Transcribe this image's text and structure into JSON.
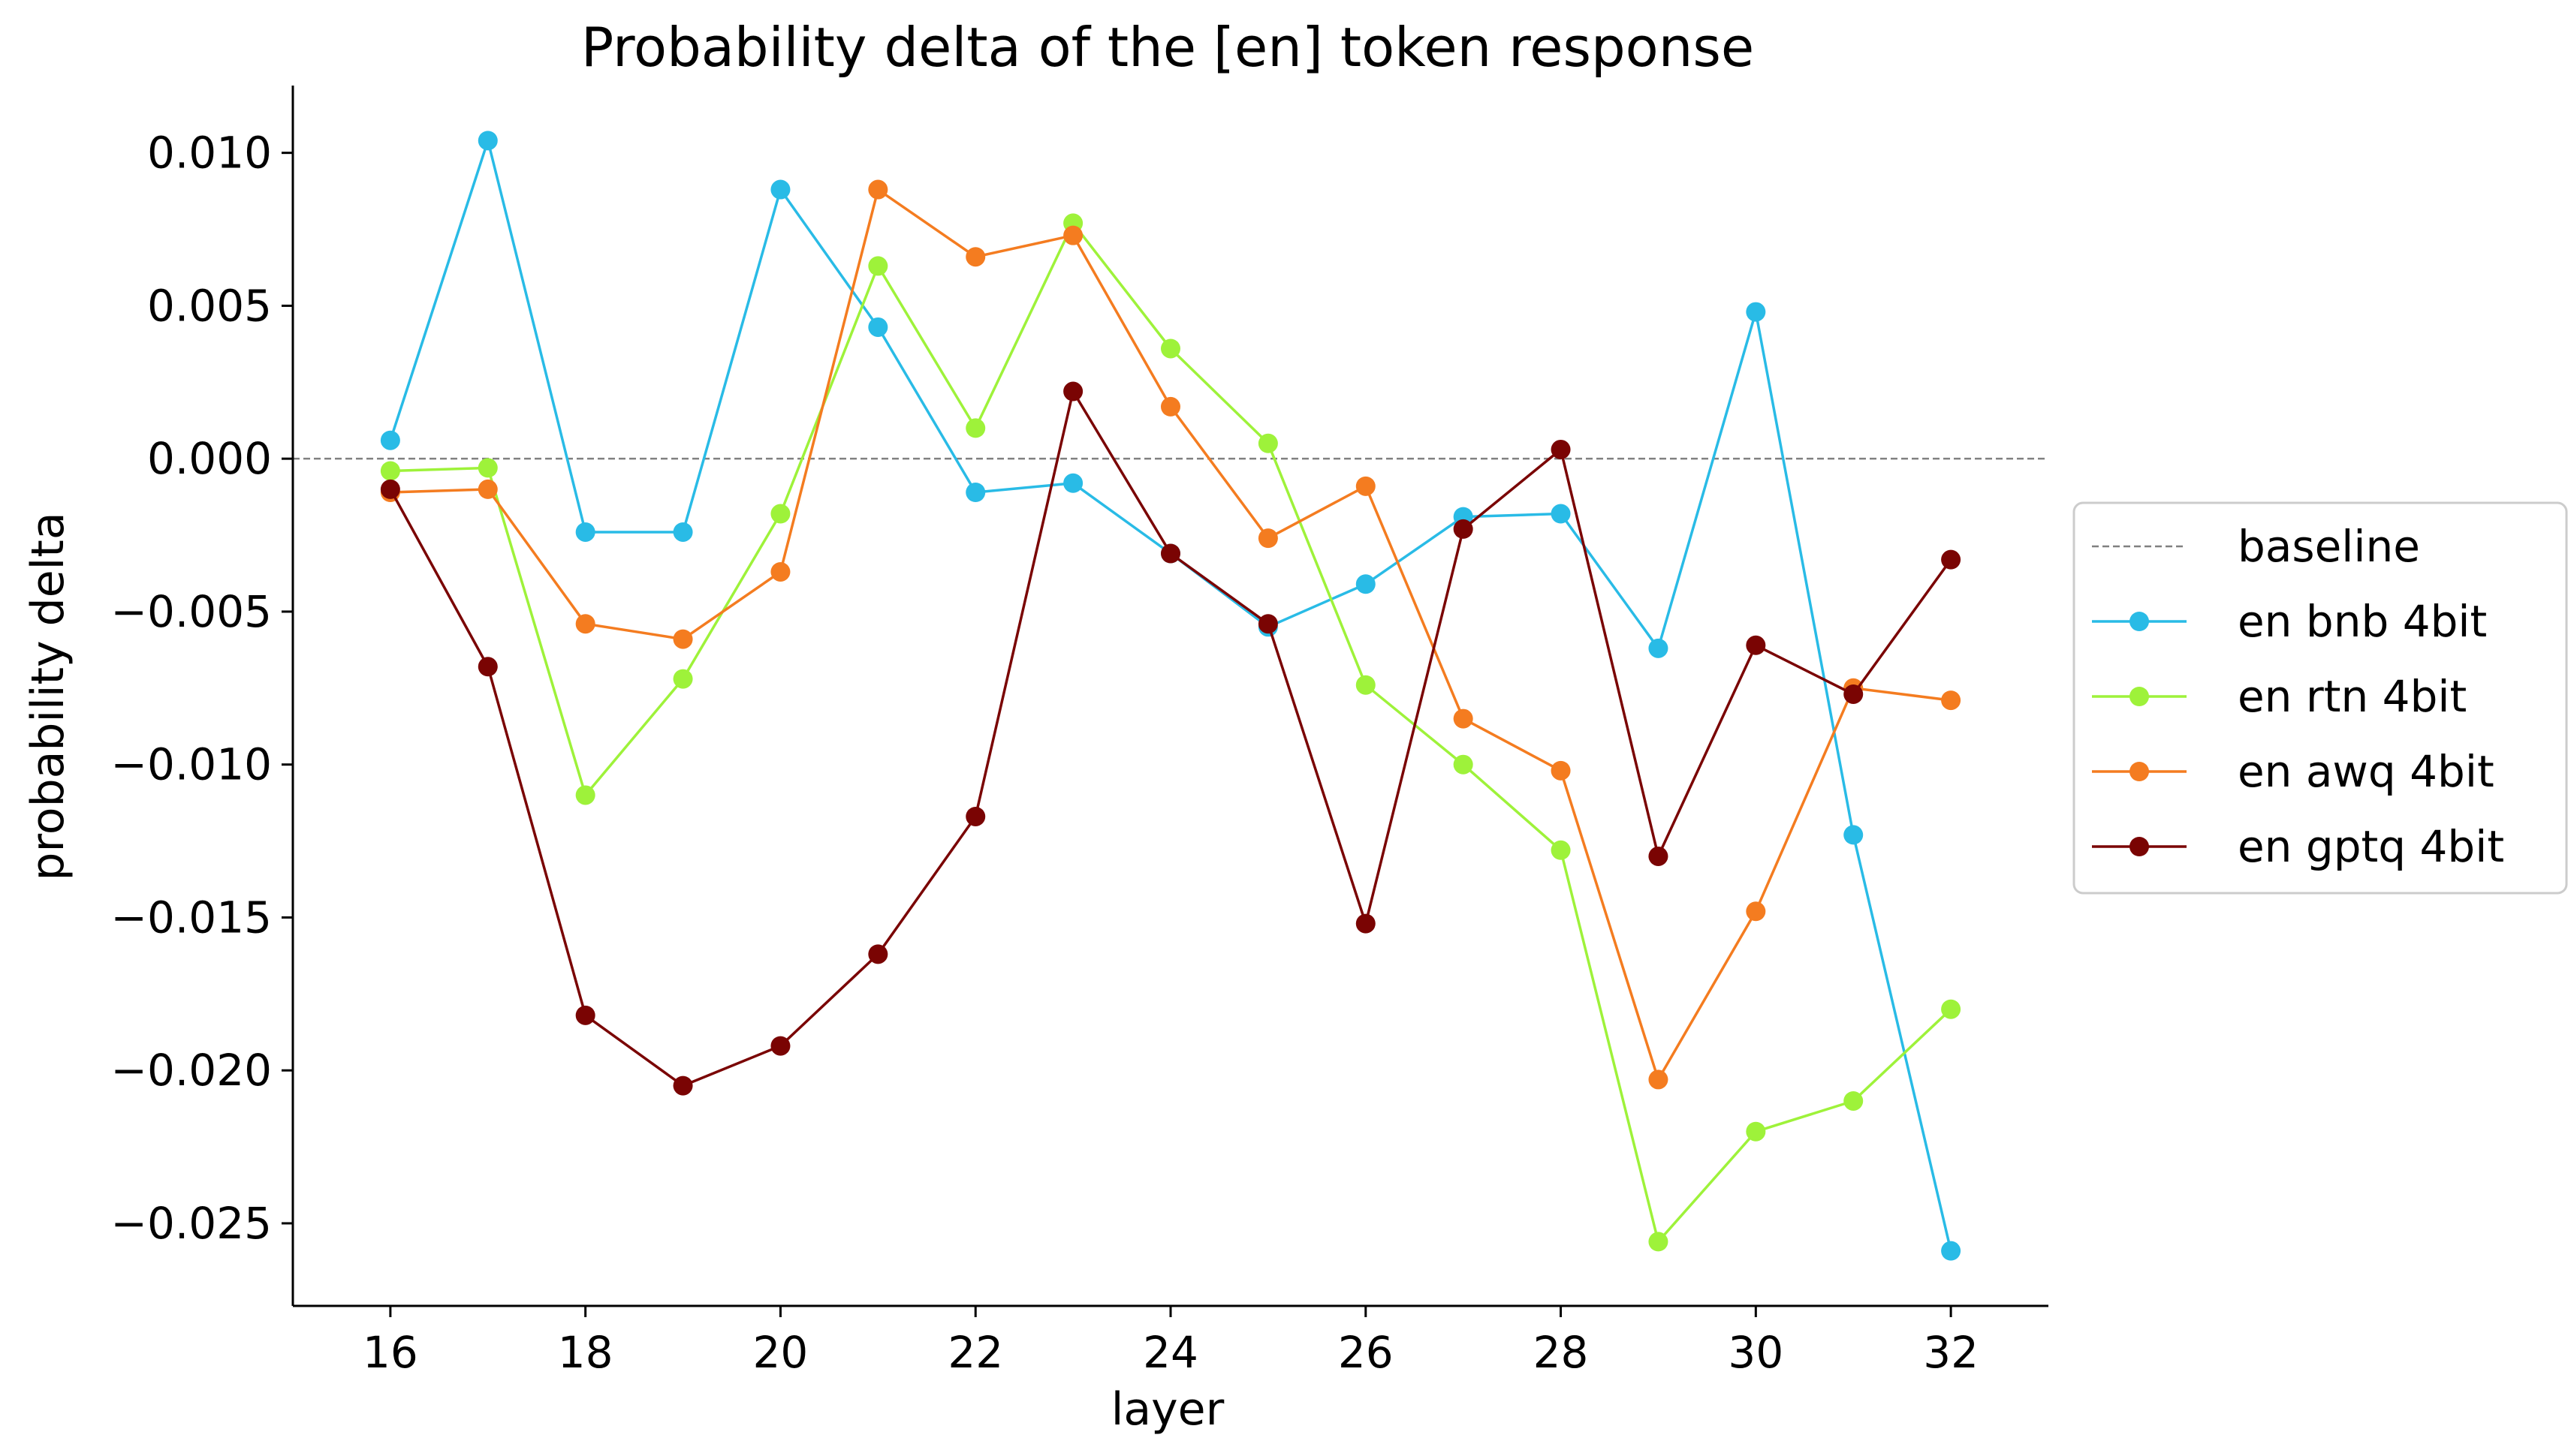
{
  "chart_data": {
    "type": "line",
    "title": "Probability delta of the [en] token response",
    "xlabel": "layer",
    "ylabel": "probability delta",
    "xlim": [
      15.0,
      33.0
    ],
    "ylim": [
      -0.0277,
      0.0122
    ],
    "xticks": [
      16,
      18,
      20,
      22,
      24,
      26,
      28,
      30,
      32
    ],
    "yticks": [
      0.01,
      0.005,
      0.0,
      -0.005,
      -0.01,
      -0.015,
      -0.02,
      -0.025
    ],
    "ytick_labels": [
      "0.010",
      "0.005",
      "0.000",
      "−0.005",
      "−0.010",
      "−0.015",
      "−0.020",
      "−0.025"
    ],
    "grid": false,
    "legend_position": "center-right outside",
    "baseline": {
      "name": "baseline",
      "y": 0.0,
      "color": "#808080",
      "style": "dashed"
    },
    "x": [
      16,
      17,
      18,
      19,
      20,
      21,
      22,
      23,
      24,
      25,
      26,
      27,
      28,
      29,
      30,
      31,
      32
    ],
    "series": [
      {
        "name": "en bnb 4bit",
        "color": "#29bbe6",
        "values": [
          0.0006,
          0.0104,
          -0.0024,
          -0.0024,
          0.0088,
          0.0043,
          -0.0011,
          -0.0008,
          -0.0031,
          -0.0055,
          -0.0041,
          -0.0019,
          -0.0018,
          -0.0062,
          0.0048,
          -0.0123,
          -0.0259
        ]
      },
      {
        "name": "en rtn 4bit",
        "color": "#9ef23a",
        "values": [
          -0.0004,
          -0.0003,
          -0.011,
          -0.0072,
          -0.0018,
          0.0063,
          0.001,
          0.0077,
          0.0036,
          0.0005,
          -0.0074,
          -0.01,
          -0.0128,
          -0.0256,
          -0.022,
          -0.021,
          -0.018
        ]
      },
      {
        "name": "en awq 4bit",
        "color": "#f47c20",
        "values": [
          -0.0011,
          -0.001,
          -0.0054,
          -0.0059,
          -0.0037,
          0.0088,
          0.0066,
          0.0073,
          0.0017,
          -0.0026,
          -0.0009,
          -0.0085,
          -0.0102,
          -0.0203,
          -0.0148,
          -0.0075,
          -0.0079
        ]
      },
      {
        "name": "en gptq 4bit",
        "color": "#7a0403",
        "values": [
          -0.001,
          -0.0068,
          -0.0182,
          -0.0205,
          -0.0192,
          -0.0162,
          -0.0117,
          0.0022,
          -0.0031,
          -0.0054,
          -0.0152,
          -0.0023,
          0.0003,
          -0.013,
          -0.0061,
          -0.0077,
          -0.0033
        ]
      }
    ]
  }
}
